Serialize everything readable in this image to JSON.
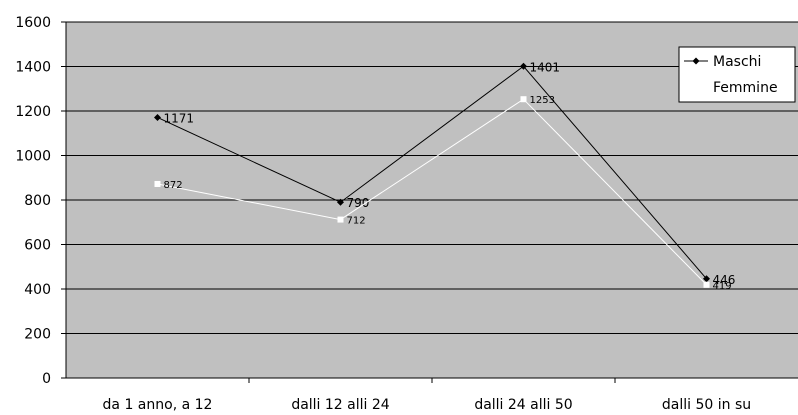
{
  "chart_data": {
    "type": "line",
    "categories": [
      "da 1 anno, a 12",
      "dalli 12 alli 24",
      "dalli 24 alli 50",
      "dalli 50 in su"
    ],
    "series": [
      {
        "name": "Maschi",
        "values": [
          1171,
          790,
          1401,
          446
        ],
        "color": "#000000",
        "marker": "diamond"
      },
      {
        "name": "Femmine",
        "values": [
          872,
          712,
          1253,
          419
        ],
        "color": "#ffffff",
        "marker": "square"
      }
    ],
    "ylim": [
      0,
      1600
    ],
    "yticks": [
      "0",
      "200",
      "400",
      "600",
      "800",
      "1000",
      "1200",
      "1400",
      "1600"
    ],
    "grid": true,
    "legend_position": "top-right",
    "plot_background": "#c0c0c0"
  }
}
